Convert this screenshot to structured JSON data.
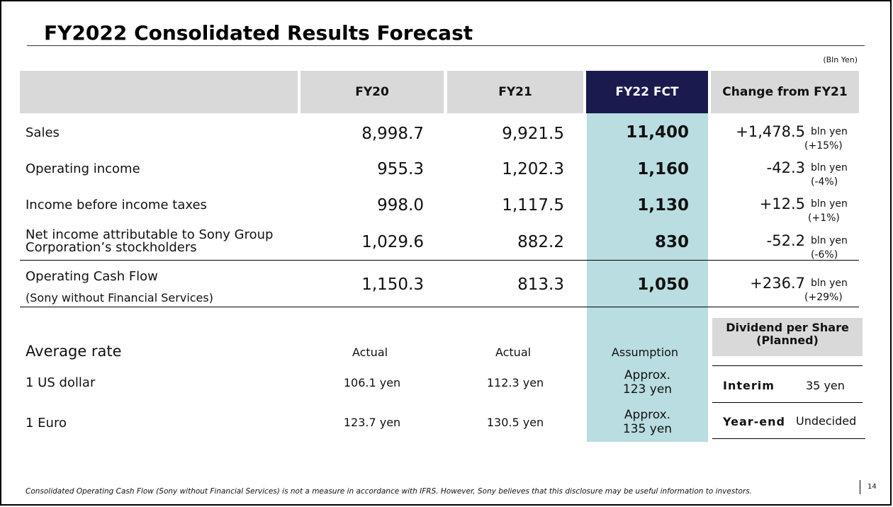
{
  "title": "FY2022 Consolidated Results Forecast",
  "unit_note": "(Bln Yen)",
  "columns": {
    "fy20": "FY20",
    "fy21": "FY21",
    "fy22": "FY22 FCT",
    "change": "Change from FY21"
  },
  "rows": [
    {
      "label": "Sales",
      "fy20": "8,998.7",
      "fy21": "9,921.5",
      "fy22": "11,400",
      "change": "+1,478.5",
      "unit": "bln yen",
      "pct": "(+15%)"
    },
    {
      "label": "Operating income",
      "fy20": "955.3",
      "fy21": "1,202.3",
      "fy22": "1,160",
      "change": "-42.3",
      "unit": "bln yen",
      "pct": "(-4%)"
    },
    {
      "label": "Income before income taxes",
      "fy20": "998.0",
      "fy21": "1,117.5",
      "fy22": "1,130",
      "change": "+12.5",
      "unit": "bln yen",
      "pct": "(+1%)"
    },
    {
      "label_line1": "Net income attributable to Sony Group",
      "label_line2": "Corporation’s stockholders",
      "fy20": "1,029.6",
      "fy21": "882.2",
      "fy22": "830",
      "change": "-52.2",
      "unit": "bln yen",
      "pct": "(-6%)"
    },
    {
      "label": "Operating Cash Flow",
      "sublabel": "(Sony without Financial Services)",
      "fy20": "1,150.3",
      "fy21": "813.3",
      "fy22": "1,050",
      "change": "+236.7",
      "unit": "bln yen",
      "pct": "(+29%)"
    }
  ],
  "rates": {
    "heading": "Average rate",
    "fy20_sub": "Actual",
    "fy21_sub": "Actual",
    "fy22_sub": "Assumption",
    "usd": {
      "label": "1 US dollar",
      "fy20": "106.1 yen",
      "fy21": "112.3 yen",
      "fy22_l1": "Approx.",
      "fy22_l2": "123 yen"
    },
    "eur": {
      "label": "1 Euro",
      "fy20": "123.7 yen",
      "fy21": "130.5 yen",
      "fy22_l1": "Approx.",
      "fy22_l2": "135 yen"
    }
  },
  "dividend": {
    "title_l1": "Dividend per Share",
    "title_l2": "(Planned)",
    "interim_label": "Interim",
    "interim_value": "35 yen",
    "yearend_label": "Year-end",
    "yearend_value": "Undecided"
  },
  "footnote": "Consolidated Operating Cash Flow (Sony without Financial Services) is not a measure in accordance with IFRS.  However, Sony believes that this disclosure may be useful information to investors.",
  "page_number": "14",
  "colors": {
    "forecast_header": "#1a1a4e",
    "forecast_column": "#b9dde1",
    "header_gray": "#d9d9d9"
  }
}
